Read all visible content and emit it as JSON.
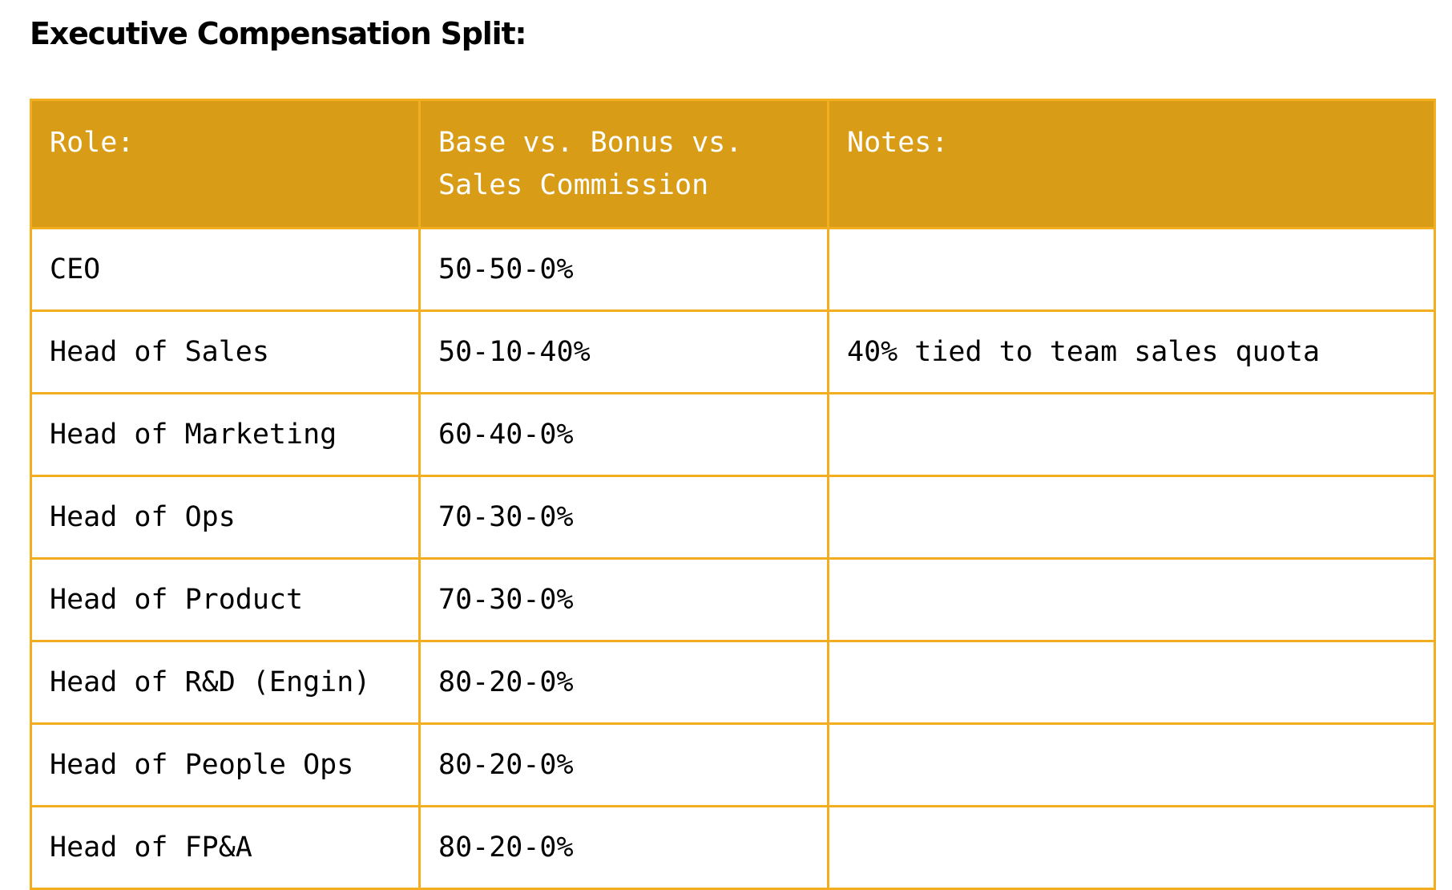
{
  "title": "Executive Compensation Split:",
  "table": {
    "headers": [
      "Role:",
      "Base vs. Bonus vs. Sales Commission",
      "Notes:"
    ],
    "rows": [
      {
        "role": "CEO",
        "split": "50-50-0%",
        "notes": ""
      },
      {
        "role": "Head of Sales",
        "split": "50-10-40%",
        "notes": "40% tied to team sales quota"
      },
      {
        "role": "Head of Marketing",
        "split": "60-40-0%",
        "notes": ""
      },
      {
        "role": "Head of Ops",
        "split": "70-30-0%",
        "notes": ""
      },
      {
        "role": "Head of Product",
        "split": "70-30-0%",
        "notes": ""
      },
      {
        "role": "Head of R&D (Engin)",
        "split": "80-20-0%",
        "notes": ""
      },
      {
        "role": "Head of People Ops",
        "split": "80-20-0%",
        "notes": ""
      },
      {
        "role": "Head of FP&A",
        "split": "80-20-0%",
        "notes": ""
      }
    ]
  },
  "colors": {
    "header_background": "#d89c17",
    "border": "#f3ae1f",
    "header_text": "#ffffff",
    "body_text": "#000000"
  }
}
